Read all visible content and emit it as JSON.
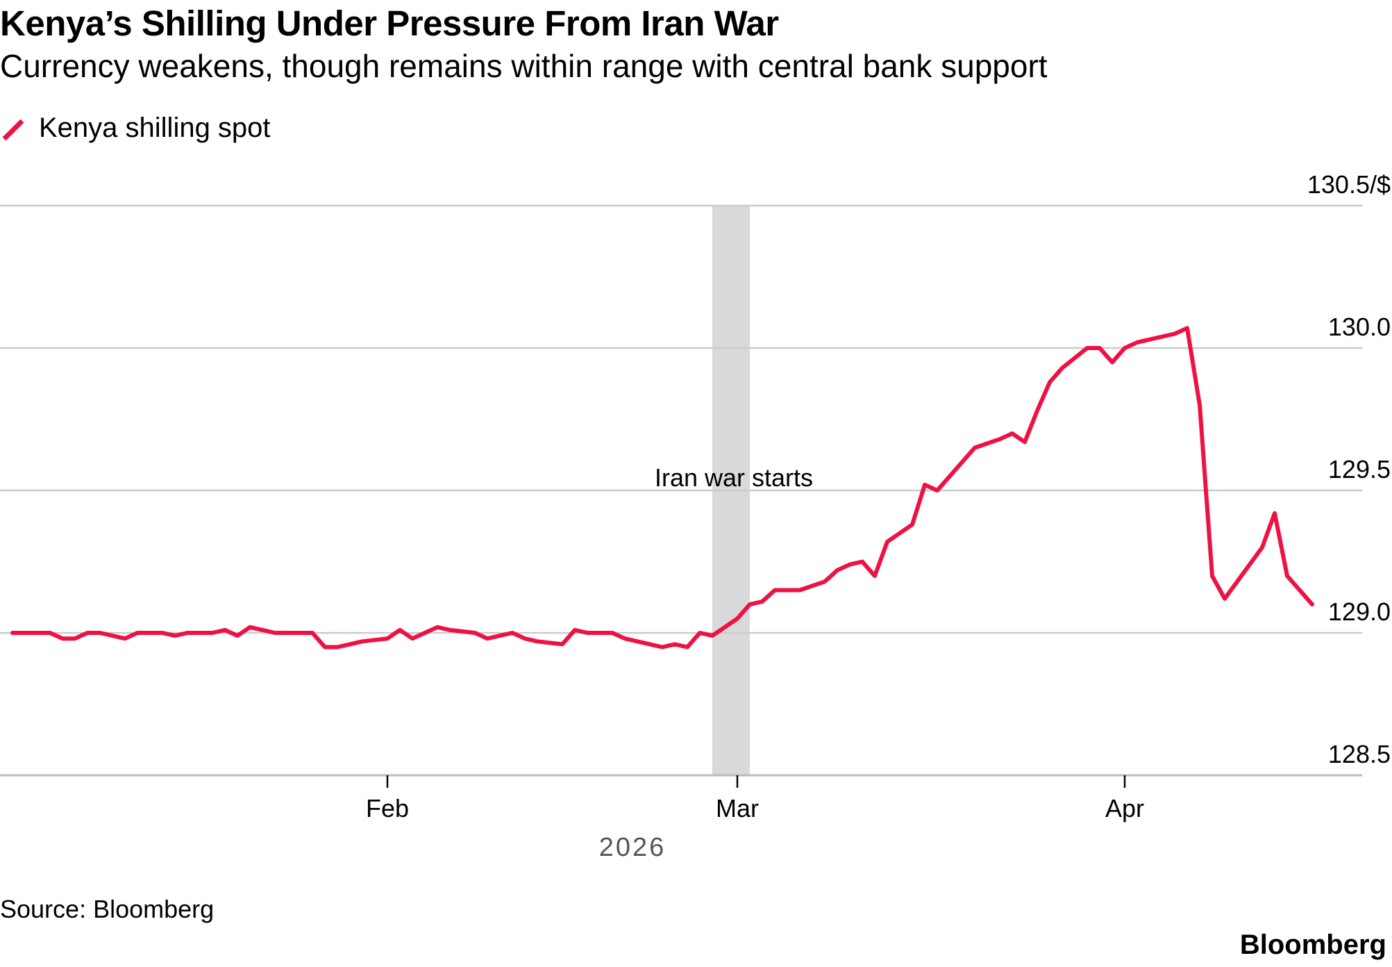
{
  "title": "Kenya’s Shilling Under Pressure From Iran War",
  "subtitle": "Currency weakens, though remains within range with central bank support",
  "legend": {
    "label": "Kenya shilling spot"
  },
  "source": "Source: Bloomberg",
  "brand": "Bloomberg",
  "colors": {
    "series": "#EE1144",
    "gridline": "#CCCCCC",
    "axis": "#BBBBBB",
    "event_band": "#D9D9D9",
    "text": "#000000",
    "year_text": "#555555"
  },
  "chart_data": {
    "type": "line",
    "title": "Kenya’s Shilling Under Pressure From Iran War",
    "subtitle": "Currency weakens, though remains within range with central bank support",
    "xlabel": "",
    "ylabel": "",
    "year_label": "2026",
    "grid": true,
    "legend_position": "top-left",
    "x_unit": "days since Jan 1, 2026",
    "xlim": [
      0,
      109
    ],
    "ylim": [
      128.5,
      130.5
    ],
    "y_ticks": [
      {
        "value": 130.5,
        "label": "130.5/$"
      },
      {
        "value": 130.0,
        "label": "130.0"
      },
      {
        "value": 129.5,
        "label": "129.5"
      },
      {
        "value": 129.0,
        "label": "129.0"
      },
      {
        "value": 128.5,
        "label": "128.5"
      }
    ],
    "x_ticks": [
      {
        "value": 31,
        "label": "Feb"
      },
      {
        "value": 59,
        "label": "Mar"
      },
      {
        "value": 90,
        "label": "Apr"
      }
    ],
    "annotation": {
      "label": "Iran war starts",
      "x_start": 57,
      "x_end": 60
    },
    "series": [
      {
        "name": "Kenya shilling spot",
        "x": [
          1,
          2,
          3,
          4,
          5,
          6,
          7,
          8,
          10,
          11,
          12,
          13,
          14,
          15,
          17,
          18,
          19,
          20,
          21,
          22,
          24,
          25,
          26,
          27,
          28,
          29,
          31,
          32,
          33,
          34,
          35,
          36,
          38,
          39,
          40,
          41,
          42,
          43,
          45,
          46,
          47,
          48,
          49,
          50,
          52,
          53,
          54,
          55,
          56,
          57,
          59,
          60,
          61,
          62,
          63,
          64,
          66,
          67,
          68,
          69,
          70,
          71,
          73,
          74,
          75,
          76,
          77,
          78,
          80,
          81,
          82,
          83,
          84,
          85,
          87,
          88,
          89,
          90,
          91,
          94,
          95,
          96,
          97,
          98,
          99,
          101,
          102,
          103,
          104,
          105
        ],
        "values": [
          129.0,
          129.0,
          129.0,
          129.0,
          128.98,
          128.98,
          129.0,
          129.0,
          128.98,
          129.0,
          129.0,
          129.0,
          128.99,
          129.0,
          129.0,
          129.01,
          128.99,
          129.02,
          129.01,
          129.0,
          129.0,
          129.0,
          128.95,
          128.95,
          128.96,
          128.97,
          128.98,
          129.01,
          128.98,
          129.0,
          129.02,
          129.01,
          129.0,
          128.98,
          128.99,
          129.0,
          128.98,
          128.97,
          128.96,
          129.01,
          129.0,
          129.0,
          129.0,
          128.98,
          128.96,
          128.95,
          128.96,
          128.95,
          129.0,
          128.99,
          129.05,
          129.1,
          129.11,
          129.15,
          129.15,
          129.15,
          129.18,
          129.22,
          129.24,
          129.25,
          129.2,
          129.32,
          129.38,
          129.52,
          129.5,
          129.55,
          129.6,
          129.65,
          129.68,
          129.7,
          129.67,
          129.78,
          129.88,
          129.93,
          130.0,
          130.0,
          129.95,
          130.0,
          130.02,
          130.05,
          130.07,
          129.8,
          129.2,
          129.12,
          129.18,
          129.3,
          129.42,
          129.2,
          129.15,
          129.1
        ]
      }
    ]
  }
}
